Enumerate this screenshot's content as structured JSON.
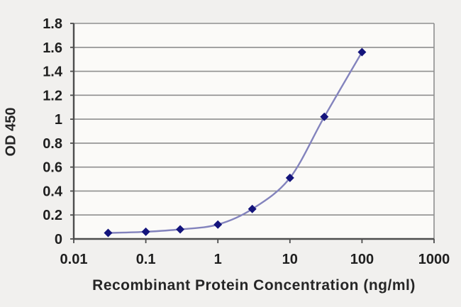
{
  "chart_data": {
    "type": "line",
    "title": "",
    "xlabel": "Recombinant Protein Concentration (ng/ml)",
    "ylabel": "OD 450",
    "x_scale": "log",
    "xlim": [
      0.01,
      1000
    ],
    "ylim": [
      0,
      1.8
    ],
    "x_ticks": [
      0.01,
      0.1,
      1,
      10,
      100,
      1000
    ],
    "x_tick_labels": [
      "0.01",
      "0.1",
      "1",
      "10",
      "100",
      "1000"
    ],
    "y_ticks": [
      0,
      0.2,
      0.4,
      0.6,
      0.8,
      1,
      1.2,
      1.4,
      1.6,
      1.8
    ],
    "y_tick_labels": [
      "0",
      "0.2",
      "0.4",
      "0.6",
      "0.8",
      "1",
      "1.2",
      "1.4",
      "1.6",
      "1.8"
    ],
    "grid": true,
    "legend": false,
    "series": [
      {
        "name": "OD 450",
        "x": [
          0.03,
          0.1,
          0.3,
          1,
          3,
          10,
          30,
          100
        ],
        "y": [
          0.05,
          0.06,
          0.08,
          0.12,
          0.25,
          0.51,
          1.02,
          1.56
        ],
        "marker": "diamond",
        "smooth": true
      }
    ],
    "colors": {
      "background": "#f1f0ee",
      "plot_background": "#fbfaf8",
      "grid": "#8f8f8f",
      "axis": "#4d4d4d",
      "line": "#8383bd",
      "marker": "#14147c",
      "text": "#1f1f1f"
    }
  }
}
